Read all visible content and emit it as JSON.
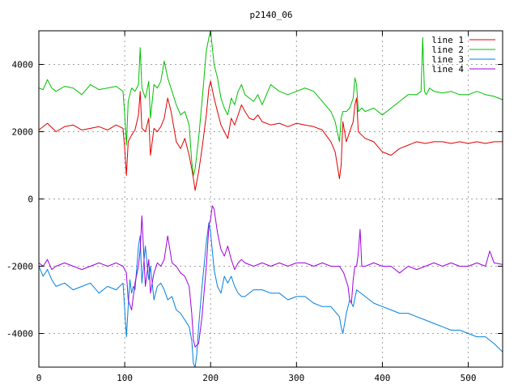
{
  "chart_data": {
    "type": "line",
    "title": "p2140_06",
    "xlabel": "",
    "ylabel": "",
    "xlim": [
      0,
      540
    ],
    "ylim": [
      -5000,
      5000
    ],
    "xticks": [
      0,
      100,
      200,
      300,
      400,
      500
    ],
    "yticks": [
      -4000,
      -2000,
      0,
      2000,
      4000
    ],
    "grid": true,
    "legend_position": "top-right",
    "series": [
      {
        "name": "line 1",
        "color": "#e00000",
        "x": [
          0,
          10,
          20,
          30,
          40,
          50,
          60,
          70,
          80,
          90,
          98,
          100,
          102,
          104,
          108,
          112,
          116,
          118,
          120,
          124,
          128,
          130,
          134,
          138,
          142,
          146,
          150,
          154,
          158,
          160,
          165,
          170,
          175,
          178,
          180,
          182,
          186,
          190,
          195,
          198,
          200,
          204,
          208,
          212,
          216,
          220,
          224,
          228,
          232,
          236,
          240,
          245,
          250,
          255,
          260,
          270,
          280,
          290,
          300,
          310,
          320,
          330,
          340,
          345,
          350,
          352,
          354,
          358,
          362,
          366,
          368,
          370,
          372,
          376,
          380,
          390,
          400,
          410,
          420,
          430,
          440,
          450,
          460,
          470,
          480,
          490,
          500,
          510,
          520,
          530,
          540
        ],
        "y": [
          2050,
          2250,
          2000,
          2150,
          2200,
          2050,
          2100,
          2150,
          2050,
          2200,
          2100,
          1500,
          700,
          1700,
          1900,
          2050,
          2500,
          3200,
          2100,
          2000,
          2400,
          1300,
          2100,
          2000,
          2150,
          2400,
          3000,
          2600,
          2000,
          1700,
          1500,
          1800,
          1300,
          900,
          600,
          250,
          800,
          1500,
          2500,
          3300,
          3500,
          3000,
          2600,
          2200,
          2000,
          1800,
          2400,
          2200,
          2500,
          2800,
          2600,
          2400,
          2350,
          2500,
          2300,
          2200,
          2250,
          2150,
          2250,
          2200,
          2150,
          2050,
          1700,
          1400,
          600,
          1000,
          2300,
          1700,
          2000,
          2300,
          2800,
          3000,
          2000,
          1900,
          1800,
          1700,
          1400,
          1300,
          1500,
          1600,
          1700,
          1650,
          1700,
          1700,
          1650,
          1700,
          1650,
          1700,
          1650,
          1700,
          1700
        ]
      },
      {
        "name": "line 2",
        "color": "#00c000",
        "x": [
          0,
          5,
          10,
          15,
          20,
          30,
          40,
          50,
          60,
          70,
          80,
          90,
          98,
          100,
          102,
          104,
          108,
          112,
          116,
          118,
          120,
          124,
          128,
          130,
          134,
          138,
          142,
          146,
          150,
          155,
          160,
          165,
          170,
          175,
          178,
          180,
          182,
          186,
          190,
          195,
          198,
          200,
          204,
          208,
          212,
          216,
          220,
          224,
          228,
          232,
          236,
          240,
          245,
          250,
          255,
          260,
          270,
          280,
          290,
          300,
          310,
          320,
          330,
          340,
          345,
          350,
          352,
          354,
          358,
          362,
          366,
          368,
          370,
          372,
          376,
          380,
          390,
          400,
          410,
          420,
          430,
          440,
          445,
          447,
          449,
          451,
          455,
          460,
          470,
          480,
          490,
          500,
          510,
          520,
          530,
          540
        ],
        "y": [
          3300,
          3250,
          3550,
          3300,
          3200,
          3350,
          3300,
          3100,
          3400,
          3250,
          3300,
          3350,
          3200,
          2500,
          1600,
          2900,
          3300,
          3200,
          3400,
          4500,
          3300,
          3000,
          3500,
          2400,
          3400,
          3300,
          3500,
          4100,
          3600,
          3200,
          2800,
          2500,
          2600,
          2200,
          1100,
          700,
          900,
          1800,
          2900,
          4400,
          4800,
          5000,
          4000,
          3600,
          3000,
          2700,
          2500,
          3000,
          2800,
          3200,
          3400,
          3100,
          3000,
          2900,
          3100,
          2800,
          3400,
          3200,
          3100,
          3200,
          3300,
          3200,
          2900,
          2600,
          2300,
          1700,
          2400,
          2600,
          2600,
          2700,
          3000,
          3600,
          3400,
          2600,
          2700,
          2600,
          2700,
          2500,
          2700,
          2900,
          3100,
          3100,
          3200,
          4800,
          3200,
          3100,
          3300,
          3200,
          3150,
          3200,
          3100,
          3100,
          3200,
          3100,
          3050,
          2950
        ]
      },
      {
        "name": "line 3",
        "color": "#0080e0",
        "x": [
          0,
          5,
          10,
          15,
          20,
          30,
          40,
          50,
          60,
          70,
          80,
          90,
          98,
          100,
          102,
          104,
          106,
          108,
          110,
          112,
          116,
          118,
          120,
          124,
          128,
          130,
          134,
          138,
          142,
          146,
          150,
          155,
          160,
          165,
          170,
          175,
          178,
          180,
          182,
          184,
          186,
          190,
          195,
          198,
          200,
          204,
          208,
          212,
          216,
          220,
          224,
          228,
          232,
          236,
          240,
          250,
          260,
          270,
          280,
          290,
          300,
          310,
          320,
          330,
          340,
          350,
          352,
          354,
          356,
          358,
          362,
          366,
          370,
          380,
          390,
          400,
          410,
          420,
          430,
          440,
          450,
          460,
          470,
          480,
          490,
          500,
          510,
          520,
          530,
          540
        ],
        "y": [
          -2000,
          -2300,
          -2100,
          -2400,
          -2600,
          -2500,
          -2700,
          -2600,
          -2500,
          -2800,
          -2600,
          -2700,
          -2500,
          -3300,
          -4100,
          -3200,
          -2400,
          -2800,
          -2600,
          -2700,
          -1400,
          -1100,
          -2500,
          -1400,
          -2400,
          -2000,
          -3000,
          -2600,
          -2500,
          -2700,
          -3000,
          -2900,
          -3300,
          -3400,
          -3600,
          -3800,
          -4200,
          -4900,
          -5000,
          -4600,
          -3800,
          -2600,
          -1300,
          -700,
          -1000,
          -2100,
          -2600,
          -2800,
          -2300,
          -2500,
          -2300,
          -2600,
          -2800,
          -2900,
          -2900,
          -2700,
          -2700,
          -2800,
          -2800,
          -3000,
          -2900,
          -2900,
          -3100,
          -3200,
          -3200,
          -3500,
          -3800,
          -4000,
          -3700,
          -3400,
          -3000,
          -3200,
          -2700,
          -2900,
          -3100,
          -3200,
          -3300,
          -3400,
          -3400,
          -3500,
          -3600,
          -3700,
          -3800,
          -3900,
          -3900,
          -4000,
          -4100,
          -4100,
          -4300,
          -4550
        ]
      },
      {
        "name": "line 4",
        "color": "#a000e0",
        "x": [
          0,
          5,
          10,
          15,
          20,
          30,
          40,
          50,
          60,
          70,
          80,
          90,
          98,
          100,
          102,
          104,
          108,
          112,
          116,
          118,
          120,
          124,
          128,
          130,
          134,
          138,
          142,
          146,
          150,
          155,
          160,
          165,
          170,
          175,
          178,
          180,
          182,
          186,
          190,
          195,
          198,
          200,
          202,
          204,
          208,
          212,
          216,
          220,
          224,
          228,
          232,
          236,
          240,
          250,
          260,
          270,
          280,
          290,
          300,
          310,
          320,
          330,
          340,
          350,
          355,
          360,
          362,
          364,
          366,
          368,
          370,
          372,
          374,
          376,
          380,
          390,
          400,
          410,
          420,
          430,
          440,
          450,
          460,
          470,
          480,
          490,
          500,
          510,
          520,
          525,
          530,
          540
        ],
        "y": [
          -1900,
          -2000,
          -1800,
          -2100,
          -2000,
          -1900,
          -2000,
          -2100,
          -2000,
          -1900,
          -2000,
          -1900,
          -2000,
          -2100,
          -2200,
          -3000,
          -3300,
          -2500,
          -2000,
          -1500,
          -500,
          -2600,
          -1800,
          -2800,
          -2200,
          -1900,
          -2000,
          -1800,
          -1100,
          -1900,
          -2000,
          -2200,
          -2300,
          -2600,
          -3400,
          -4200,
          -4400,
          -4300,
          -3500,
          -2000,
          -800,
          -600,
          -200,
          -300,
          -1000,
          -1500,
          -1700,
          -1400,
          -1800,
          -2100,
          -1900,
          -1800,
          -1900,
          -2000,
          -1900,
          -2000,
          -1900,
          -2000,
          -1900,
          -1900,
          -2000,
          -1900,
          -2000,
          -2000,
          -2200,
          -2600,
          -3000,
          -3100,
          -2400,
          -2000,
          -2000,
          -1600,
          -900,
          -2000,
          -2000,
          -1900,
          -2000,
          -2000,
          -2200,
          -2000,
          -2100,
          -2000,
          -1900,
          -2000,
          -1900,
          -2000,
          -2000,
          -1900,
          -2000,
          -1550,
          -1900,
          -1950
        ]
      }
    ]
  }
}
